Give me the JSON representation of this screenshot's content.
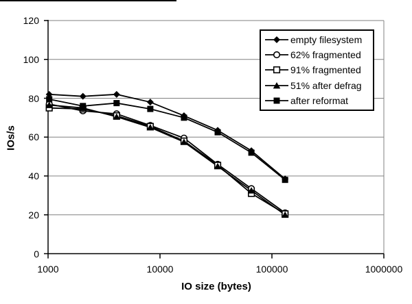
{
  "chart_data": {
    "type": "line",
    "title": "",
    "xlabel": "IO size (bytes)",
    "ylabel": "IOs/s",
    "x_scale": "log10",
    "xlim": [
      1000,
      1000000
    ],
    "ylim": [
      0,
      120
    ],
    "x_tick_values": [
      1000,
      10000,
      100000,
      1000000
    ],
    "x_tick_labels": [
      "1000",
      "10000",
      "100000",
      "1000000"
    ],
    "y_tick_values": [
      0,
      20,
      40,
      60,
      80,
      100,
      120
    ],
    "y_tick_labels": [
      "0",
      "20",
      "40",
      "60",
      "80",
      "100",
      "120"
    ],
    "grid": "horizontal-gray",
    "legend_position": "top-right-inside",
    "line_color": "#000000",
    "gridline_color": "#808080",
    "x": [
      1024,
      2048,
      4096,
      8192,
      16384,
      32768,
      65536,
      131072
    ],
    "series": [
      {
        "name": "empty filesystem",
        "marker": "diamond-filled",
        "values": [
          82,
          81,
          82,
          78,
          71,
          63.5,
          53,
          38.5
        ]
      },
      {
        "name": "62% fragmented",
        "marker": "circle-open",
        "values": [
          77,
          73.5,
          72,
          66,
          59.5,
          46,
          33.5,
          21
        ]
      },
      {
        "name": "91% fragmented",
        "marker": "square-open",
        "values": [
          75,
          74.5,
          71,
          65.5,
          58,
          45.5,
          31,
          20.5
        ]
      },
      {
        "name": "51% after defrag",
        "marker": "triangle-filled",
        "values": [
          76.5,
          75,
          70.5,
          65,
          57.5,
          45,
          32.5,
          20
        ]
      },
      {
        "name": "after reformat",
        "marker": "square-filled",
        "values": [
          79.5,
          76,
          77.5,
          74.5,
          70,
          62.5,
          52,
          38
        ]
      }
    ]
  }
}
